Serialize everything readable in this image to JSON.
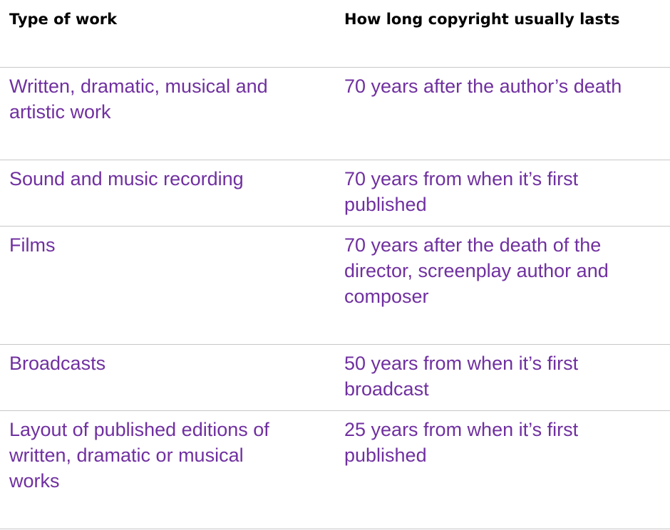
{
  "table": {
    "headers": [
      "Type of work",
      "How long copyright usually lasts"
    ],
    "rows": [
      {
        "type": "Written, dramatic, musical and\nartistic work",
        "duration": "70 years after the author’s death"
      },
      {
        "type": "Sound and music recording",
        "duration": "70 years from when it’s first\npublished"
      },
      {
        "type": "Films",
        "duration": "70 years after the death of the\ndirector, screenplay author and\ncomposer"
      },
      {
        "type": "Broadcasts",
        "duration": "50 years from when it’s first\nbroadcast"
      },
      {
        "type": "Layout of published editions of\nwritten, dramatic or musical\nworks",
        "duration": "25 years from when it’s first\npublished"
      }
    ]
  },
  "colors": {
    "header_text": "#000000",
    "body_text": "#7030a0",
    "rule": "#c8c8c8"
  }
}
